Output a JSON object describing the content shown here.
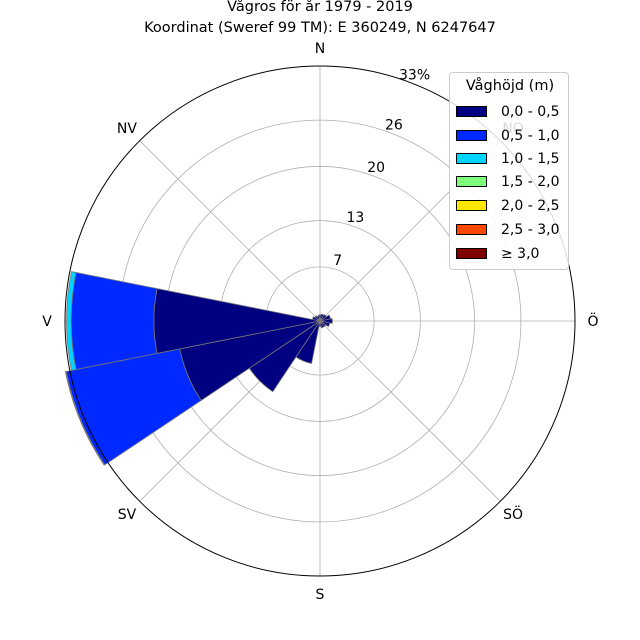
{
  "title": {
    "line1": "Vågros för år 1979 - 2019",
    "line2": "Koordinat (Sweref 99 TM): E 360249, N 6247647"
  },
  "chart_data": {
    "type": "polar-stacked-bar",
    "directions": [
      "N",
      "NO",
      "Ö",
      "SÖ",
      "S",
      "SV",
      "V",
      "NV"
    ],
    "radial_ticks": [
      "7",
      "13",
      "20",
      "26",
      "33%"
    ],
    "radial_max_percent": 33,
    "grid": true,
    "legend": {
      "title": "Våghöjd (m)",
      "placement": "top-right",
      "entries": [
        {
          "label": "0,0 - 0,5",
          "color": "#000080"
        },
        {
          "label": "0,5 - 1,0",
          "color": "#0029ff"
        },
        {
          "label": "1,0 - 1,5",
          "color": "#00d4ff"
        },
        {
          "label": "1,5 - 2,0",
          "color": "#7dff7a"
        },
        {
          "label": "2,0 - 2,5",
          "color": "#ffe600"
        },
        {
          "label": "2,5 - 3,0",
          "color": "#ff4700"
        },
        {
          "label": "≥ 3,0",
          "color": "#800000"
        }
      ]
    },
    "sectors": [
      {
        "direction_deg": 0,
        "cumulative": [
          0.8
        ]
      },
      {
        "direction_deg": 22.5,
        "cumulative": [
          0.9
        ]
      },
      {
        "direction_deg": 45,
        "cumulative": [
          1.0
        ]
      },
      {
        "direction_deg": 67.5,
        "cumulative": [
          1.4
        ]
      },
      {
        "direction_deg": 90,
        "cumulative": [
          1.6
        ]
      },
      {
        "direction_deg": 112.5,
        "cumulative": [
          1.3
        ]
      },
      {
        "direction_deg": 135,
        "cumulative": [
          0.9
        ]
      },
      {
        "direction_deg": 157.5,
        "cumulative": [
          0.9
        ]
      },
      {
        "direction_deg": 180,
        "cumulative": [
          0.7
        ]
      },
      {
        "direction_deg": 202.5,
        "cumulative": [
          5.6
        ]
      },
      {
        "direction_deg": 225,
        "cumulative": [
          11.0
        ]
      },
      {
        "direction_deg": 247.5,
        "cumulative": [
          18.5,
          33.5,
          33.6
        ]
      },
      {
        "direction_deg": 270,
        "cumulative": [
          21.5,
          32.2,
          32.8
        ]
      },
      {
        "direction_deg": 292.5,
        "cumulative": [
          1.0
        ]
      },
      {
        "direction_deg": 315,
        "cumulative": [
          0.8
        ]
      },
      {
        "direction_deg": 337.5,
        "cumulative": [
          0.7
        ]
      }
    ]
  }
}
